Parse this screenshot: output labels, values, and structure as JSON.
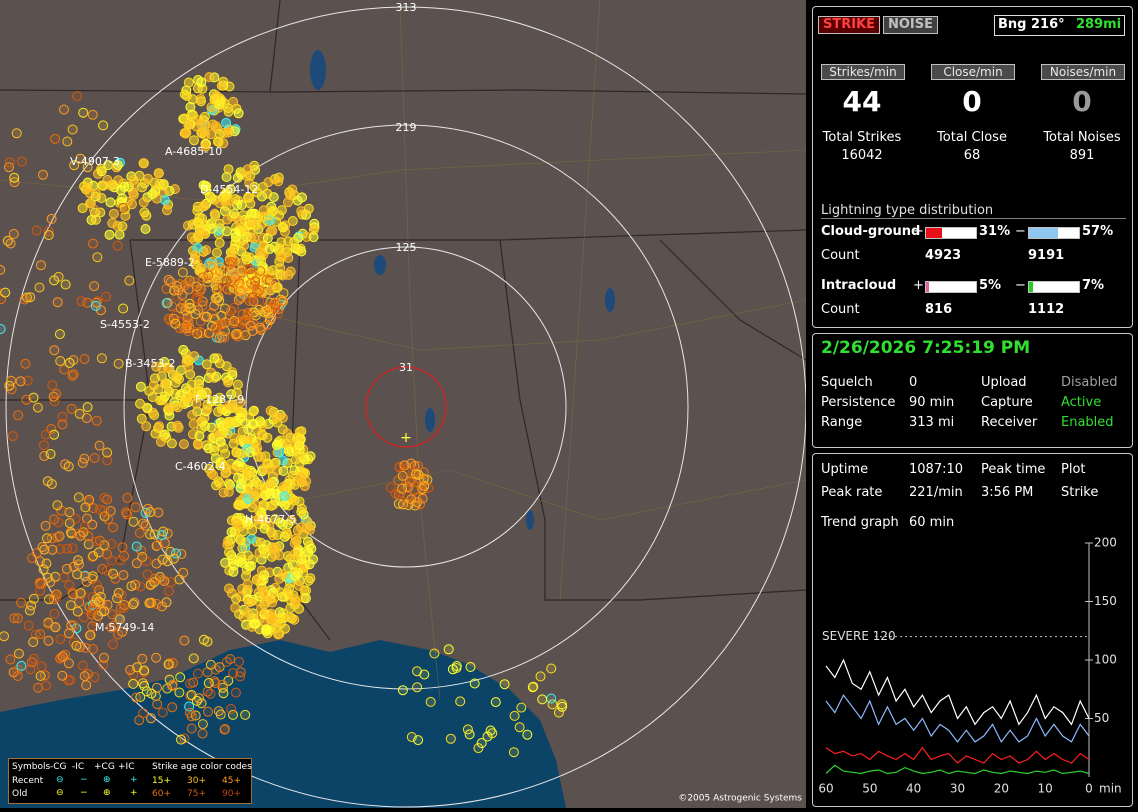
{
  "map": {
    "ring_labels": [
      "313",
      "219",
      "125",
      "31"
    ],
    "storm_labels": [
      "A-4685-10",
      "V-4907-3",
      "D-4554-12",
      "E-5889-2",
      "S-4553-2",
      "B-3453-2",
      "F-1287-9",
      "C-4602-4",
      "H-4677-5",
      "M-5749-14"
    ],
    "legend": {
      "symbols": "Symbols",
      "types": [
        "-CG",
        "-IC",
        "+CG",
        "+IC"
      ],
      "age_title": "Strike age color codes",
      "rows": [
        "Recent",
        "Old"
      ],
      "ages_recent": [
        "15+",
        "30+",
        "45+"
      ],
      "ages_old": [
        "60+",
        "75+",
        "90+"
      ]
    },
    "copyright": "©2005 Astrogenic Systems"
  },
  "status": {
    "strike": "STRIKE",
    "noise": "NOISE",
    "bearing": "Bng 216°",
    "distance": "289mi"
  },
  "rates": [
    {
      "label": "Strikes/min",
      "value": 44,
      "total_label": "Total Strikes",
      "total": 16042,
      "color": "#ffffff"
    },
    {
      "label": "Close/min",
      "value": 0,
      "total_label": "Total Close",
      "total": 68,
      "color": "#ffffff"
    },
    {
      "label": "Noises/min",
      "value": 0,
      "total_label": "Total Noises",
      "total": 891,
      "color": "#9a9a9a"
    }
  ],
  "distribution": {
    "title": "Lightning type distribution",
    "count_label": "Count",
    "plus_sign": "+",
    "minus_sign": "−",
    "rows": [
      {
        "name": "Cloud-ground",
        "plus": {
          "value": 31,
          "label": "31%"
        },
        "minus": {
          "value": 57,
          "label": "57%"
        },
        "plus_count": 4923,
        "minus_count": 9191,
        "plus_color": "#e8101a",
        "minus_color": "#8ec8f0"
      },
      {
        "name": "Intracloud",
        "plus": {
          "value": 5,
          "label": "5%"
        },
        "minus": {
          "value": 7,
          "label": "7%"
        },
        "plus_count": 816,
        "minus_count": 1112,
        "plus_color": "#e060a0",
        "minus_color": "#20d020"
      }
    ]
  },
  "datetime": "2/26/2026 7:25:19 PM",
  "settings": [
    {
      "label": "Squelch",
      "value": "0"
    },
    {
      "label": "Persistence",
      "value": "90 min"
    },
    {
      "label": "Range",
      "value": "313 mi"
    }
  ],
  "services": [
    {
      "label": "Upload",
      "value": "Disabled",
      "color": "#a0a0a0"
    },
    {
      "label": "Capture",
      "value": "Active",
      "color": "#30e030"
    },
    {
      "label": "Receiver",
      "value": "Enabled",
      "color": "#30e030"
    }
  ],
  "stats": {
    "uptime_label": "Uptime",
    "uptime": "1087:10",
    "peak_time_label": "Peak time",
    "peak_time": "3:56 PM",
    "plot_label": "Plot",
    "plot": "Strike",
    "peak_rate_label": "Peak rate",
    "peak_rate": "221/min",
    "trend_label": "Trend graph",
    "trend": "60 min"
  },
  "chart_data": {
    "type": "line",
    "x": [
      60,
      58,
      56,
      54,
      52,
      50,
      48,
      46,
      44,
      42,
      40,
      38,
      36,
      34,
      32,
      30,
      28,
      26,
      24,
      22,
      20,
      18,
      16,
      14,
      12,
      10,
      8,
      6,
      4,
      2,
      0
    ],
    "xlim": [
      60,
      0
    ],
    "xticks": [
      60,
      50,
      40,
      30,
      20,
      10,
      0
    ],
    "x_label": "min",
    "ylim": [
      0,
      200
    ],
    "yticks": [
      50,
      100,
      150,
      200
    ],
    "threshold": {
      "value": 120,
      "label": "SEVERE 120"
    },
    "series": [
      {
        "color": "#ffffff",
        "values": [
          95,
          85,
          100,
          80,
          75,
          90,
          70,
          85,
          65,
          75,
          60,
          70,
          55,
          65,
          70,
          50,
          60,
          45,
          55,
          60,
          50,
          65,
          45,
          55,
          70,
          50,
          60,
          55,
          45,
          65,
          50
        ]
      },
      {
        "color": "#8fb8ff",
        "values": [
          65,
          55,
          70,
          60,
          50,
          65,
          45,
          60,
          45,
          50,
          40,
          50,
          35,
          45,
          40,
          30,
          40,
          30,
          35,
          45,
          30,
          40,
          30,
          35,
          50,
          35,
          45,
          35,
          30,
          45,
          35
        ]
      },
      {
        "color": "#ff2020",
        "values": [
          25,
          20,
          22,
          18,
          20,
          15,
          22,
          18,
          15,
          20,
          15,
          25,
          15,
          18,
          20,
          12,
          18,
          15,
          12,
          20,
          15,
          18,
          12,
          15,
          22,
          15,
          20,
          15,
          12,
          20,
          15
        ]
      },
      {
        "color": "#30d030",
        "values": [
          3,
          10,
          5,
          4,
          3,
          5,
          6,
          3,
          4,
          8,
          5,
          3,
          4,
          6,
          3,
          5,
          4,
          3,
          6,
          4,
          3,
          5,
          4,
          3,
          5,
          4,
          6,
          3,
          4,
          5,
          3
        ]
      }
    ]
  }
}
